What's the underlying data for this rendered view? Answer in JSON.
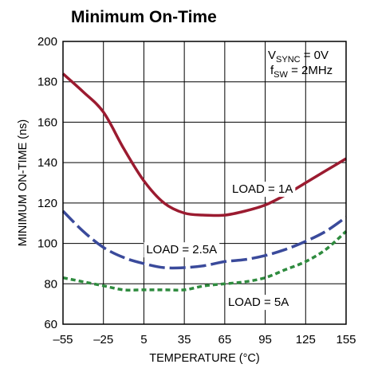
{
  "chart_data": {
    "type": "line",
    "title": "Minimum On-Time",
    "xlabel": "TEMPERATURE (°C)",
    "ylabel": "MINIMUM ON-TIME (ns)",
    "xlim": [
      -55,
      155
    ],
    "ylim": [
      60,
      200
    ],
    "x_ticks": [
      "–55",
      "–25",
      "5",
      "35",
      "65",
      "95",
      "125",
      "155"
    ],
    "y_ticks": [
      "60",
      "80",
      "100",
      "120",
      "140",
      "160",
      "180",
      "200"
    ],
    "grid": true,
    "conditions": {
      "vsync_main": "V",
      "vsync_sub": "SYNC",
      "vsync_value": " = 0V",
      "fsw_main": "f",
      "fsw_sub": "SW",
      "fsw_value": " = 2MHz"
    },
    "series": [
      {
        "name": "LOAD = 1A",
        "color": "#9b1b30",
        "style": "solid",
        "x": [
          -55,
          -40,
          -25,
          -10,
          5,
          20,
          35,
          50,
          65,
          80,
          95,
          110,
          125,
          140,
          155
        ],
        "y": [
          184,
          175,
          165,
          147,
          131,
          120,
          115,
          114,
          114,
          116,
          119,
          124,
          130,
          136,
          142
        ]
      },
      {
        "name": "LOAD = 2.5A",
        "color": "#3a4a9b",
        "style": "dashed",
        "x": [
          -55,
          -40,
          -25,
          -10,
          5,
          20,
          35,
          50,
          65,
          80,
          95,
          110,
          125,
          140,
          155
        ],
        "y": [
          116,
          106,
          98,
          93,
          90,
          88,
          88,
          89,
          91,
          92,
          94,
          97,
          101,
          106,
          113
        ]
      },
      {
        "name": "LOAD = 5A",
        "color": "#2e8b3e",
        "style": "dotted",
        "x": [
          -55,
          -40,
          -25,
          -10,
          5,
          20,
          35,
          50,
          65,
          80,
          95,
          110,
          125,
          140,
          155
        ],
        "y": [
          83,
          81,
          79,
          77,
          77,
          77,
          77,
          79,
          80,
          81,
          83,
          87,
          91,
          97,
          106
        ]
      }
    ],
    "annotations": [
      {
        "text": "LOAD = 1A",
        "x": 93,
        "y": 127
      },
      {
        "text": "LOAD = 2.5A",
        "x": 33,
        "y": 97
      },
      {
        "text": "LOAD = 5A",
        "x": 90,
        "y": 71
      }
    ]
  }
}
